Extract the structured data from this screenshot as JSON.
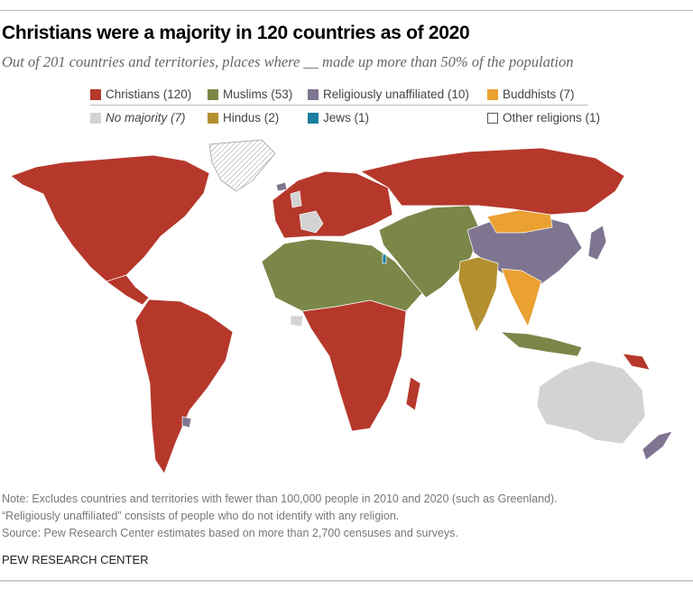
{
  "title": "Christians were a majority in 120 countries as of 2020",
  "subtitle": "Out of 201 countries and territories, places where __ made up more than 50% of the population",
  "legend": [
    {
      "label": "Christians (120)",
      "color": "#b5382b",
      "italic": false
    },
    {
      "label": "Muslims (53)",
      "color": "#7b8748",
      "italic": false
    },
    {
      "label": "Religiously unaffiliated (10)",
      "color": "#7f7591",
      "italic": false
    },
    {
      "label": "Buddhists (7)",
      "color": "#eba032",
      "italic": false
    },
    {
      "label": "No majority (7)",
      "color": "#d3d3d3",
      "italic": true
    },
    {
      "label": "Hindus (2)",
      "color": "#b38f30",
      "italic": false
    },
    {
      "label": "Jews (1)",
      "color": "#1a7fa0",
      "italic": false
    },
    {
      "label": "Other religions (1)",
      "color": "#ffffff",
      "italic": false
    }
  ],
  "notes": [
    "Note: Excludes countries and territories with fewer than 100,000 people in 2010 and 2020 (such as Greenland).",
    "“Religiously unaffiliated” consists of people who do not identify with any religion.",
    "Source: Pew Research Center estimates based on more than 2,700 censuses and surveys."
  ],
  "footer": "PEW RESEARCH CENTER"
}
